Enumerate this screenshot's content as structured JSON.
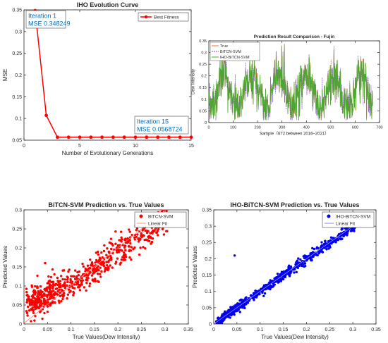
{
  "chart_data": [
    {
      "id": "iho",
      "type": "line",
      "title": "IHO Evolution Curve",
      "xlabel": "Number of Evolutionary Generations",
      "ylabel": "MSE",
      "xlim": [
        0,
        15
      ],
      "ylim": [
        0.05,
        0.35
      ],
      "xticks": [
        0,
        5,
        10,
        15
      ],
      "yticks": [
        0.05,
        0.1,
        0.15,
        0.2,
        0.25,
        0.3,
        0.35
      ],
      "grid": false,
      "legend_position": "top-right",
      "series": [
        {
          "name": "Best Fitness",
          "color": "#ff0000",
          "x": [
            1,
            2,
            3,
            4,
            5,
            6,
            7,
            8,
            9,
            10,
            11,
            12,
            13,
            14,
            15
          ],
          "y": [
            0.348249,
            0.107,
            0.0569,
            0.0569,
            0.0569,
            0.0569,
            0.0569,
            0.0569,
            0.0569,
            0.0569,
            0.0569,
            0.0569,
            0.0569,
            0.0569,
            0.0568724
          ]
        }
      ],
      "annotations": [
        {
          "x": 1,
          "y": 0.348249,
          "lines": [
            "Iteration 1",
            "MSE 0.348249"
          ]
        },
        {
          "x": 15,
          "y": 0.0568724,
          "lines": [
            "Iteration 15",
            "MSE 0.0568724"
          ]
        }
      ]
    },
    {
      "id": "comparison",
      "type": "line",
      "title": "Prediction Result Comparison - Fujin",
      "xlabel": "Sample（672 between 2016~2021）",
      "ylabel": "Dew Intensity",
      "xlim": [
        0,
        700
      ],
      "ylim": [
        0,
        0.35
      ],
      "xticks": [
        0,
        100,
        200,
        300,
        400,
        500,
        600,
        700
      ],
      "yticks": [
        0,
        0.05,
        0.1,
        0.15,
        0.2,
        0.25,
        0.3,
        0.35
      ],
      "grid": false,
      "legend_position": "top-left",
      "samples": 672,
      "series": [
        {
          "name": "True",
          "color": "#ff6f1f"
        },
        {
          "name": "BiTCN-SVM",
          "color": "#7b46c8",
          "dash": true
        },
        {
          "name": "IHO-BiTCN-SVM",
          "color": "#4aa832"
        }
      ]
    },
    {
      "id": "bitcn",
      "type": "scatter",
      "title": "BiTCN-SVM Prediction vs. True Values",
      "xlabel": "True Values(Dew Intensity)",
      "ylabel": "Predicted Values",
      "xlim": [
        0,
        0.35
      ],
      "ylim": [
        0,
        0.3
      ],
      "xticks": [
        0,
        0.05,
        0.1,
        0.15,
        0.2,
        0.25,
        0.3,
        0.35
      ],
      "yticks": [
        0,
        0.05,
        0.1,
        0.15,
        0.2,
        0.25,
        0.3
      ],
      "grid": false,
      "legend_position": "top-right",
      "series": [
        {
          "name": "BiTCN-SVM",
          "color": "#ff0000",
          "points": 672,
          "noise": 0.02
        },
        {
          "name": "Linear Fit",
          "color": "#ff8080",
          "fit": [
            0.002,
            0.27
          ]
        }
      ]
    },
    {
      "id": "iho_bitcn",
      "type": "scatter",
      "title": "IHO-BiTCN-SVM Prediction vs. True Values",
      "xlabel": "True Values(Dew Intensity)",
      "ylabel": "Predicted Values",
      "xlim": [
        0,
        0.35
      ],
      "ylim": [
        0,
        0.35
      ],
      "xticks": [
        0,
        0.05,
        0.1,
        0.15,
        0.2,
        0.25,
        0.3,
        0.35
      ],
      "yticks": [
        0,
        0.05,
        0.1,
        0.15,
        0.2,
        0.25,
        0.3,
        0.35
      ],
      "grid": false,
      "legend_position": "top-right",
      "series": [
        {
          "name": "IHO-BiTCN-SVM",
          "color": "#0000ee",
          "points": 672,
          "noise": 0.007
        },
        {
          "name": "Linear Fit",
          "color": "#8080ff",
          "fit": [
            0.0,
            0.32
          ]
        }
      ]
    }
  ]
}
